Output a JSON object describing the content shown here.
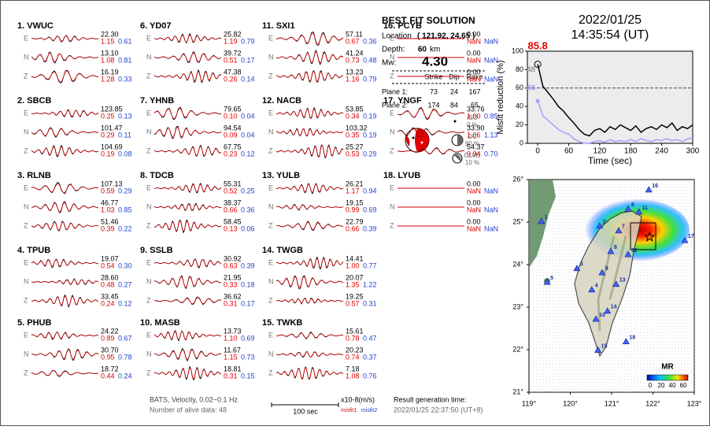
{
  "header": {
    "date": "2022/01/25",
    "time": "14:35:54  (UT)"
  },
  "stations": [
    {
      "name": "1. VWUC",
      "components": [
        {
          "label": "E",
          "amplitude": "22.30",
          "misfit1": "1.15",
          "misfit2": "0.61"
        },
        {
          "label": "N",
          "amplitude": "13.10",
          "misfit1": "1.08",
          "misfit2": "0.81"
        },
        {
          "label": "Z",
          "amplitude": "16.19",
          "misfit1": "1.28",
          "misfit2": "0.33"
        }
      ]
    },
    {
      "name": "2. SBCB",
      "components": [
        {
          "label": "E",
          "amplitude": "123.85",
          "misfit1": "0.25",
          "misfit2": "0.13"
        },
        {
          "label": "N",
          "amplitude": "101.47",
          "misfit1": "0.29",
          "misfit2": "0.11"
        },
        {
          "label": "Z",
          "amplitude": "104.69",
          "misfit1": "0.19",
          "misfit2": "0.08"
        }
      ]
    },
    {
      "name": "3. RLNB",
      "components": [
        {
          "label": "E",
          "amplitude": "107.13",
          "misfit1": "0.59",
          "misfit2": "0.29"
        },
        {
          "label": "N",
          "amplitude": "46.77",
          "misfit1": "1.03",
          "misfit2": "0.85"
        },
        {
          "label": "Z",
          "amplitude": "51.46",
          "misfit1": "0.39",
          "misfit2": "0.22"
        }
      ]
    },
    {
      "name": "4. TPUB",
      "components": [
        {
          "label": "E",
          "amplitude": "19.07",
          "misfit1": "0.54",
          "misfit2": "0.30"
        },
        {
          "label": "N",
          "amplitude": "28.60",
          "misfit1": "0.48",
          "misfit2": "0.27"
        },
        {
          "label": "Z",
          "amplitude": "33.45",
          "misfit1": "0.24",
          "misfit2": "0.12"
        }
      ]
    },
    {
      "name": "5. PHUB",
      "components": [
        {
          "label": "E",
          "amplitude": "24.22",
          "misfit1": "0.89",
          "misfit2": "0.67"
        },
        {
          "label": "N",
          "amplitude": "30.70",
          "misfit1": "0.95",
          "misfit2": "0.78"
        },
        {
          "label": "Z",
          "amplitude": "18.72",
          "misfit1": "0.44",
          "misfit2": "0.24"
        }
      ]
    },
    {
      "name": "6. YD07",
      "components": [
        {
          "label": "E",
          "amplitude": "25.82",
          "misfit1": "1.19",
          "misfit2": "0.79"
        },
        {
          "label": "N",
          "amplitude": "39.72",
          "misfit1": "0.51",
          "misfit2": "0.17"
        },
        {
          "label": "Z",
          "amplitude": "47.38",
          "misfit1": "0.26",
          "misfit2": "0.14"
        }
      ]
    },
    {
      "name": "7. YHNB",
      "components": [
        {
          "label": "E",
          "amplitude": "79.65",
          "misfit1": "0.10",
          "misfit2": "0.04"
        },
        {
          "label": "N",
          "amplitude": "94.54",
          "misfit1": "0.09",
          "misfit2": "0.04"
        },
        {
          "label": "Z",
          "amplitude": "67.75",
          "misfit1": "0.23",
          "misfit2": "0.12"
        }
      ]
    },
    {
      "name": "8. TDCB",
      "components": [
        {
          "label": "E",
          "amplitude": "55.31",
          "misfit1": "0.52",
          "misfit2": "0.25"
        },
        {
          "label": "N",
          "amplitude": "38.37",
          "misfit1": "0.66",
          "misfit2": "0.36"
        },
        {
          "label": "Z",
          "amplitude": "58.45",
          "misfit1": "0.13",
          "misfit2": "0.06"
        }
      ]
    },
    {
      "name": "9. SSLB",
      "components": [
        {
          "label": "E",
          "amplitude": "30.92",
          "misfit1": "0.63",
          "misfit2": "0.39"
        },
        {
          "label": "N",
          "amplitude": "21.95",
          "misfit1": "0.33",
          "misfit2": "0.18"
        },
        {
          "label": "Z",
          "amplitude": "36.62",
          "misfit1": "0.31",
          "misfit2": "0.17"
        }
      ]
    },
    {
      "name": "10. MASB",
      "components": [
        {
          "label": "E",
          "amplitude": "13.73",
          "misfit1": "1.10",
          "misfit2": "0.69"
        },
        {
          "label": "N",
          "amplitude": "11.67",
          "misfit1": "1.15",
          "misfit2": "0.73"
        },
        {
          "label": "Z",
          "amplitude": "18.81",
          "misfit1": "0.31",
          "misfit2": "0.15"
        }
      ]
    },
    {
      "name": "11. SXI1",
      "components": [
        {
          "label": "E",
          "amplitude": "57.11",
          "misfit1": "0.67",
          "misfit2": "0.36"
        },
        {
          "label": "N",
          "amplitude": "41.24",
          "misfit1": "0.73",
          "misfit2": "0.48"
        },
        {
          "label": "Z",
          "amplitude": "13.23",
          "misfit1": "1.16",
          "misfit2": "0.79"
        }
      ]
    },
    {
      "name": "12. NACB",
      "components": [
        {
          "label": "E",
          "amplitude": "53.85",
          "misfit1": "0.34",
          "misfit2": "0.19"
        },
        {
          "label": "N",
          "amplitude": "103.32",
          "misfit1": "0.35",
          "misfit2": "0.19"
        },
        {
          "label": "Z",
          "amplitude": "25.27",
          "misfit1": "0.53",
          "misfit2": "0.29"
        }
      ]
    },
    {
      "name": "13. YULB",
      "components": [
        {
          "label": "E",
          "amplitude": "26.21",
          "misfit1": "1.17",
          "misfit2": "0.94"
        },
        {
          "label": "N",
          "amplitude": "19.15",
          "misfit1": "0.99",
          "misfit2": "0.69"
        },
        {
          "label": "Z",
          "amplitude": "22.79",
          "misfit1": "0.66",
          "misfit2": "0.39"
        }
      ]
    },
    {
      "name": "14. TWGB",
      "components": [
        {
          "label": "E",
          "amplitude": "14.41",
          "misfit1": "1.00",
          "misfit2": "0.77"
        },
        {
          "label": "N",
          "amplitude": "20.07",
          "misfit1": "1.35",
          "misfit2": "1.22"
        },
        {
          "label": "Z",
          "amplitude": "19.25",
          "misfit1": "0.57",
          "misfit2": "0.31"
        }
      ]
    },
    {
      "name": "15. TWKB",
      "components": [
        {
          "label": "E",
          "amplitude": "15.61",
          "misfit1": "0.78",
          "misfit2": "0.47"
        },
        {
          "label": "N",
          "amplitude": "20.23",
          "misfit1": "0.74",
          "misfit2": "0.37"
        },
        {
          "label": "Z",
          "amplitude": "7.18",
          "misfit1": "1.08",
          "misfit2": "0.76"
        }
      ]
    },
    {
      "name": "16. PCYB",
      "components": [
        {
          "label": "E",
          "amplitude": "0.00",
          "misfit1": "NaN",
          "misfit2": "NaN"
        },
        {
          "label": "N",
          "amplitude": "0.00",
          "misfit1": "NaN",
          "misfit2": "NaN"
        },
        {
          "label": "Z",
          "amplitude": "0.00",
          "misfit1": "NaN",
          "misfit2": "NaN"
        }
      ]
    },
    {
      "name": "17. YNGF",
      "components": [
        {
          "label": "E",
          "amplitude": "33.76",
          "misfit1": "1.00",
          "misfit2": "0.85"
        },
        {
          "label": "N",
          "amplitude": "33.90",
          "misfit1": "1.06",
          "misfit2": "1.13"
        },
        {
          "label": "Z",
          "amplitude": "54.37",
          "misfit1": "0.94",
          "misfit2": "0.70"
        }
      ]
    },
    {
      "name": "18. LYUB",
      "components": [
        {
          "label": "E",
          "amplitude": "0.00",
          "misfit1": "NaN",
          "misfit2": "NaN"
        },
        {
          "label": "N",
          "amplitude": "0.00",
          "misfit1": "NaN",
          "misfit2": "NaN"
        },
        {
          "label": "Z",
          "amplitude": "0.00",
          "misfit1": "NaN",
          "misfit2": "NaN"
        }
      ]
    }
  ],
  "solution": {
    "title": "BEST FIT SOLUTION",
    "location_label": "Location",
    "location": "( 121.92, 24.65 )",
    "depth_label": "Depth:",
    "depth": 60,
    "depth_unit": "km",
    "mw_label": "Mw:",
    "mw": "4.30",
    "table": {
      "headers": [
        "Strike",
        "Dip",
        "Rake"
      ],
      "rows": [
        {
          "label": "Plane 1:",
          "values": [
            73,
            24,
            167
          ]
        },
        {
          "label": "Plane 2:",
          "values": [
            174,
            84,
            65
          ]
        }
      ]
    },
    "components": [
      {
        "label": "ISO",
        "value": "0 %"
      },
      {
        "label": "DC",
        "value": "90 %"
      },
      {
        "label": "CLVD",
        "value": "10 %"
      }
    ]
  },
  "chart_data": {
    "type": "line",
    "x": [
      0,
      10,
      20,
      30,
      40,
      50,
      60,
      70,
      80,
      90,
      100,
      110,
      120,
      130,
      140,
      150,
      160,
      170,
      180,
      190,
      200,
      210,
      220,
      230,
      240,
      250,
      260,
      270,
      280,
      290,
      300
    ],
    "series": [
      {
        "color": "#000000",
        "values": [
          85.8,
          62,
          55,
          48,
          40,
          35,
          28,
          22,
          15,
          10,
          8,
          14,
          16,
          12,
          18,
          15,
          20,
          17,
          14,
          19,
          12,
          16,
          18,
          15,
          20,
          17,
          22,
          14,
          18,
          16,
          20
        ]
      },
      {
        "color": "#a0a0ff",
        "values": [
          46,
          30,
          25,
          20,
          15,
          12,
          10,
          5,
          2,
          0,
          0,
          2,
          3,
          1,
          4,
          2,
          3,
          2,
          4,
          2,
          5,
          3,
          2,
          4,
          3,
          5,
          3,
          4,
          2,
          5,
          6
        ]
      }
    ],
    "xlim": [
      -20,
      300
    ],
    "ylim": [
      0,
      100
    ],
    "xticks": [
      0,
      60,
      120,
      180,
      240,
      300
    ],
    "yticks": [
      0,
      20,
      40,
      60,
      80,
      100
    ],
    "xlabel": "Time (sec)",
    "ylabel": "Misfit reduction (%)",
    "reference_line": 60,
    "annotations": [
      {
        "text": "85.8",
        "color": "#e00000"
      },
      {
        "text": "48",
        "color": "#999999"
      },
      {
        "text": "46",
        "color": "#a0a0ff"
      }
    ]
  },
  "map": {
    "xlim": [
      119,
      123
    ],
    "ylim": [
      21,
      26
    ],
    "xticks": [
      {
        "value": 119,
        "label": "119°"
      },
      {
        "value": 120,
        "label": "120°"
      },
      {
        "value": 121,
        "label": "121°"
      },
      {
        "value": 122,
        "label": "122°"
      },
      {
        "value": 123,
        "label": "123°"
      }
    ],
    "yticks": [
      {
        "value": 21,
        "label": "21°"
      },
      {
        "value": 22,
        "label": "22°"
      },
      {
        "value": 23,
        "label": "23°"
      },
      {
        "value": 24,
        "label": "24°"
      },
      {
        "value": 25,
        "label": "25°"
      },
      {
        "value": 26,
        "label": "26°"
      }
    ],
    "stations": [
      {
        "label": "1",
        "lon": 119.3,
        "lat": 25.02
      },
      {
        "label": "2",
        "lon": 120.71,
        "lat": 24.91
      },
      {
        "label": "3",
        "lon": 120.16,
        "lat": 23.91
      },
      {
        "label": "4",
        "lon": 120.52,
        "lat": 23.41
      },
      {
        "label": "5",
        "lon": 119.44,
        "lat": 23.59
      },
      {
        "label": "6",
        "lon": 121.4,
        "lat": 25.31
      },
      {
        "label": "7",
        "lon": 121.17,
        "lat": 24.8
      },
      {
        "label": "8",
        "lon": 120.98,
        "lat": 24.31
      },
      {
        "label": "9",
        "lon": 120.77,
        "lat": 23.81
      },
      {
        "label": "10",
        "lon": 120.62,
        "lat": 22.72
      },
      {
        "label": "11",
        "lon": 121.66,
        "lat": 25.24
      },
      {
        "label": "12",
        "lon": 121.4,
        "lat": 24.24
      },
      {
        "label": "13",
        "lon": 121.11,
        "lat": 23.54
      },
      {
        "label": "14",
        "lon": 120.9,
        "lat": 22.91
      },
      {
        "label": "15",
        "lon": 120.67,
        "lat": 21.99
      },
      {
        "label": "16",
        "lon": 121.9,
        "lat": 25.76
      },
      {
        "label": "17",
        "lon": 122.77,
        "lat": 24.57
      },
      {
        "label": "18",
        "lon": 121.35,
        "lat": 22.19
      }
    ],
    "epicenter": {
      "lon": 121.92,
      "lat": 24.65
    },
    "colorbar_title": "MR",
    "colorbar_ticks": [
      0,
      20,
      40,
      60
    ]
  },
  "footer": {
    "filter": "BATS, Velocity, 0.02~0.1 Hz",
    "alive": "Number of alive data: 48",
    "scale": "100 sec",
    "units": "x10-8(m/s)",
    "misfit1": "misfit1",
    "misfit2": "misfit2",
    "result_label": "Result generation time:",
    "result_time": "2022/01/25 22:37:50 (UT+8)"
  }
}
